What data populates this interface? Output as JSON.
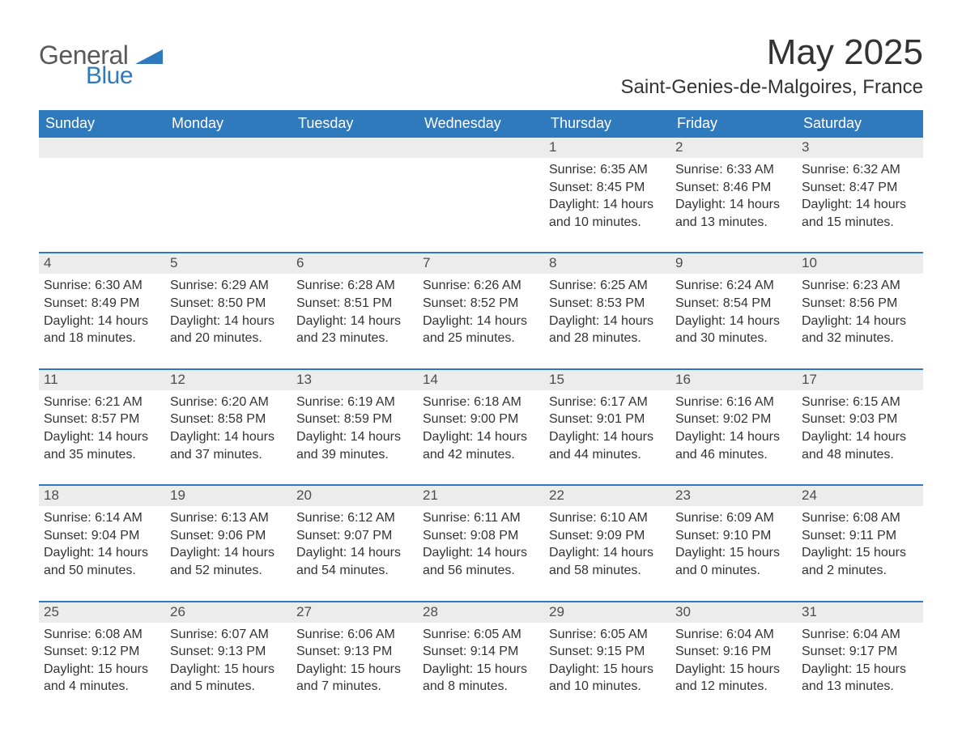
{
  "logo": {
    "general": "General",
    "blue": "Blue"
  },
  "title": "May 2025",
  "location": "Saint-Genies-de-Malgoires, France",
  "colors": {
    "header_bg": "#2f79bd",
    "header_text": "#ffffff",
    "daynum_bg": "#ececec",
    "body_text": "#333333",
    "logo_gray": "#5a5a5a",
    "logo_blue": "#2f79bd",
    "row_border": "#2f79bd"
  },
  "weekdays": [
    "Sunday",
    "Monday",
    "Tuesday",
    "Wednesday",
    "Thursday",
    "Friday",
    "Saturday"
  ],
  "weeks": [
    [
      null,
      null,
      null,
      null,
      {
        "n": "1",
        "sunrise": "6:35 AM",
        "sunset": "8:45 PM",
        "dl1": "Daylight: 14 hours",
        "dl2": "and 10 minutes."
      },
      {
        "n": "2",
        "sunrise": "6:33 AM",
        "sunset": "8:46 PM",
        "dl1": "Daylight: 14 hours",
        "dl2": "and 13 minutes."
      },
      {
        "n": "3",
        "sunrise": "6:32 AM",
        "sunset": "8:47 PM",
        "dl1": "Daylight: 14 hours",
        "dl2": "and 15 minutes."
      }
    ],
    [
      {
        "n": "4",
        "sunrise": "6:30 AM",
        "sunset": "8:49 PM",
        "dl1": "Daylight: 14 hours",
        "dl2": "and 18 minutes."
      },
      {
        "n": "5",
        "sunrise": "6:29 AM",
        "sunset": "8:50 PM",
        "dl1": "Daylight: 14 hours",
        "dl2": "and 20 minutes."
      },
      {
        "n": "6",
        "sunrise": "6:28 AM",
        "sunset": "8:51 PM",
        "dl1": "Daylight: 14 hours",
        "dl2": "and 23 minutes."
      },
      {
        "n": "7",
        "sunrise": "6:26 AM",
        "sunset": "8:52 PM",
        "dl1": "Daylight: 14 hours",
        "dl2": "and 25 minutes."
      },
      {
        "n": "8",
        "sunrise": "6:25 AM",
        "sunset": "8:53 PM",
        "dl1": "Daylight: 14 hours",
        "dl2": "and 28 minutes."
      },
      {
        "n": "9",
        "sunrise": "6:24 AM",
        "sunset": "8:54 PM",
        "dl1": "Daylight: 14 hours",
        "dl2": "and 30 minutes."
      },
      {
        "n": "10",
        "sunrise": "6:23 AM",
        "sunset": "8:56 PM",
        "dl1": "Daylight: 14 hours",
        "dl2": "and 32 minutes."
      }
    ],
    [
      {
        "n": "11",
        "sunrise": "6:21 AM",
        "sunset": "8:57 PM",
        "dl1": "Daylight: 14 hours",
        "dl2": "and 35 minutes."
      },
      {
        "n": "12",
        "sunrise": "6:20 AM",
        "sunset": "8:58 PM",
        "dl1": "Daylight: 14 hours",
        "dl2": "and 37 minutes."
      },
      {
        "n": "13",
        "sunrise": "6:19 AM",
        "sunset": "8:59 PM",
        "dl1": "Daylight: 14 hours",
        "dl2": "and 39 minutes."
      },
      {
        "n": "14",
        "sunrise": "6:18 AM",
        "sunset": "9:00 PM",
        "dl1": "Daylight: 14 hours",
        "dl2": "and 42 minutes."
      },
      {
        "n": "15",
        "sunrise": "6:17 AM",
        "sunset": "9:01 PM",
        "dl1": "Daylight: 14 hours",
        "dl2": "and 44 minutes."
      },
      {
        "n": "16",
        "sunrise": "6:16 AM",
        "sunset": "9:02 PM",
        "dl1": "Daylight: 14 hours",
        "dl2": "and 46 minutes."
      },
      {
        "n": "17",
        "sunrise": "6:15 AM",
        "sunset": "9:03 PM",
        "dl1": "Daylight: 14 hours",
        "dl2": "and 48 minutes."
      }
    ],
    [
      {
        "n": "18",
        "sunrise": "6:14 AM",
        "sunset": "9:04 PM",
        "dl1": "Daylight: 14 hours",
        "dl2": "and 50 minutes."
      },
      {
        "n": "19",
        "sunrise": "6:13 AM",
        "sunset": "9:06 PM",
        "dl1": "Daylight: 14 hours",
        "dl2": "and 52 minutes."
      },
      {
        "n": "20",
        "sunrise": "6:12 AM",
        "sunset": "9:07 PM",
        "dl1": "Daylight: 14 hours",
        "dl2": "and 54 minutes."
      },
      {
        "n": "21",
        "sunrise": "6:11 AM",
        "sunset": "9:08 PM",
        "dl1": "Daylight: 14 hours",
        "dl2": "and 56 minutes."
      },
      {
        "n": "22",
        "sunrise": "6:10 AM",
        "sunset": "9:09 PM",
        "dl1": "Daylight: 14 hours",
        "dl2": "and 58 minutes."
      },
      {
        "n": "23",
        "sunrise": "6:09 AM",
        "sunset": "9:10 PM",
        "dl1": "Daylight: 15 hours",
        "dl2": "and 0 minutes."
      },
      {
        "n": "24",
        "sunrise": "6:08 AM",
        "sunset": "9:11 PM",
        "dl1": "Daylight: 15 hours",
        "dl2": "and 2 minutes."
      }
    ],
    [
      {
        "n": "25",
        "sunrise": "6:08 AM",
        "sunset": "9:12 PM",
        "dl1": "Daylight: 15 hours",
        "dl2": "and 4 minutes."
      },
      {
        "n": "26",
        "sunrise": "6:07 AM",
        "sunset": "9:13 PM",
        "dl1": "Daylight: 15 hours",
        "dl2": "and 5 minutes."
      },
      {
        "n": "27",
        "sunrise": "6:06 AM",
        "sunset": "9:13 PM",
        "dl1": "Daylight: 15 hours",
        "dl2": "and 7 minutes."
      },
      {
        "n": "28",
        "sunrise": "6:05 AM",
        "sunset": "9:14 PM",
        "dl1": "Daylight: 15 hours",
        "dl2": "and 8 minutes."
      },
      {
        "n": "29",
        "sunrise": "6:05 AM",
        "sunset": "9:15 PM",
        "dl1": "Daylight: 15 hours",
        "dl2": "and 10 minutes."
      },
      {
        "n": "30",
        "sunrise": "6:04 AM",
        "sunset": "9:16 PM",
        "dl1": "Daylight: 15 hours",
        "dl2": "and 12 minutes."
      },
      {
        "n": "31",
        "sunrise": "6:04 AM",
        "sunset": "9:17 PM",
        "dl1": "Daylight: 15 hours",
        "dl2": "and 13 minutes."
      }
    ]
  ],
  "labels": {
    "sunrise_prefix": "Sunrise: ",
    "sunset_prefix": "Sunset: "
  }
}
